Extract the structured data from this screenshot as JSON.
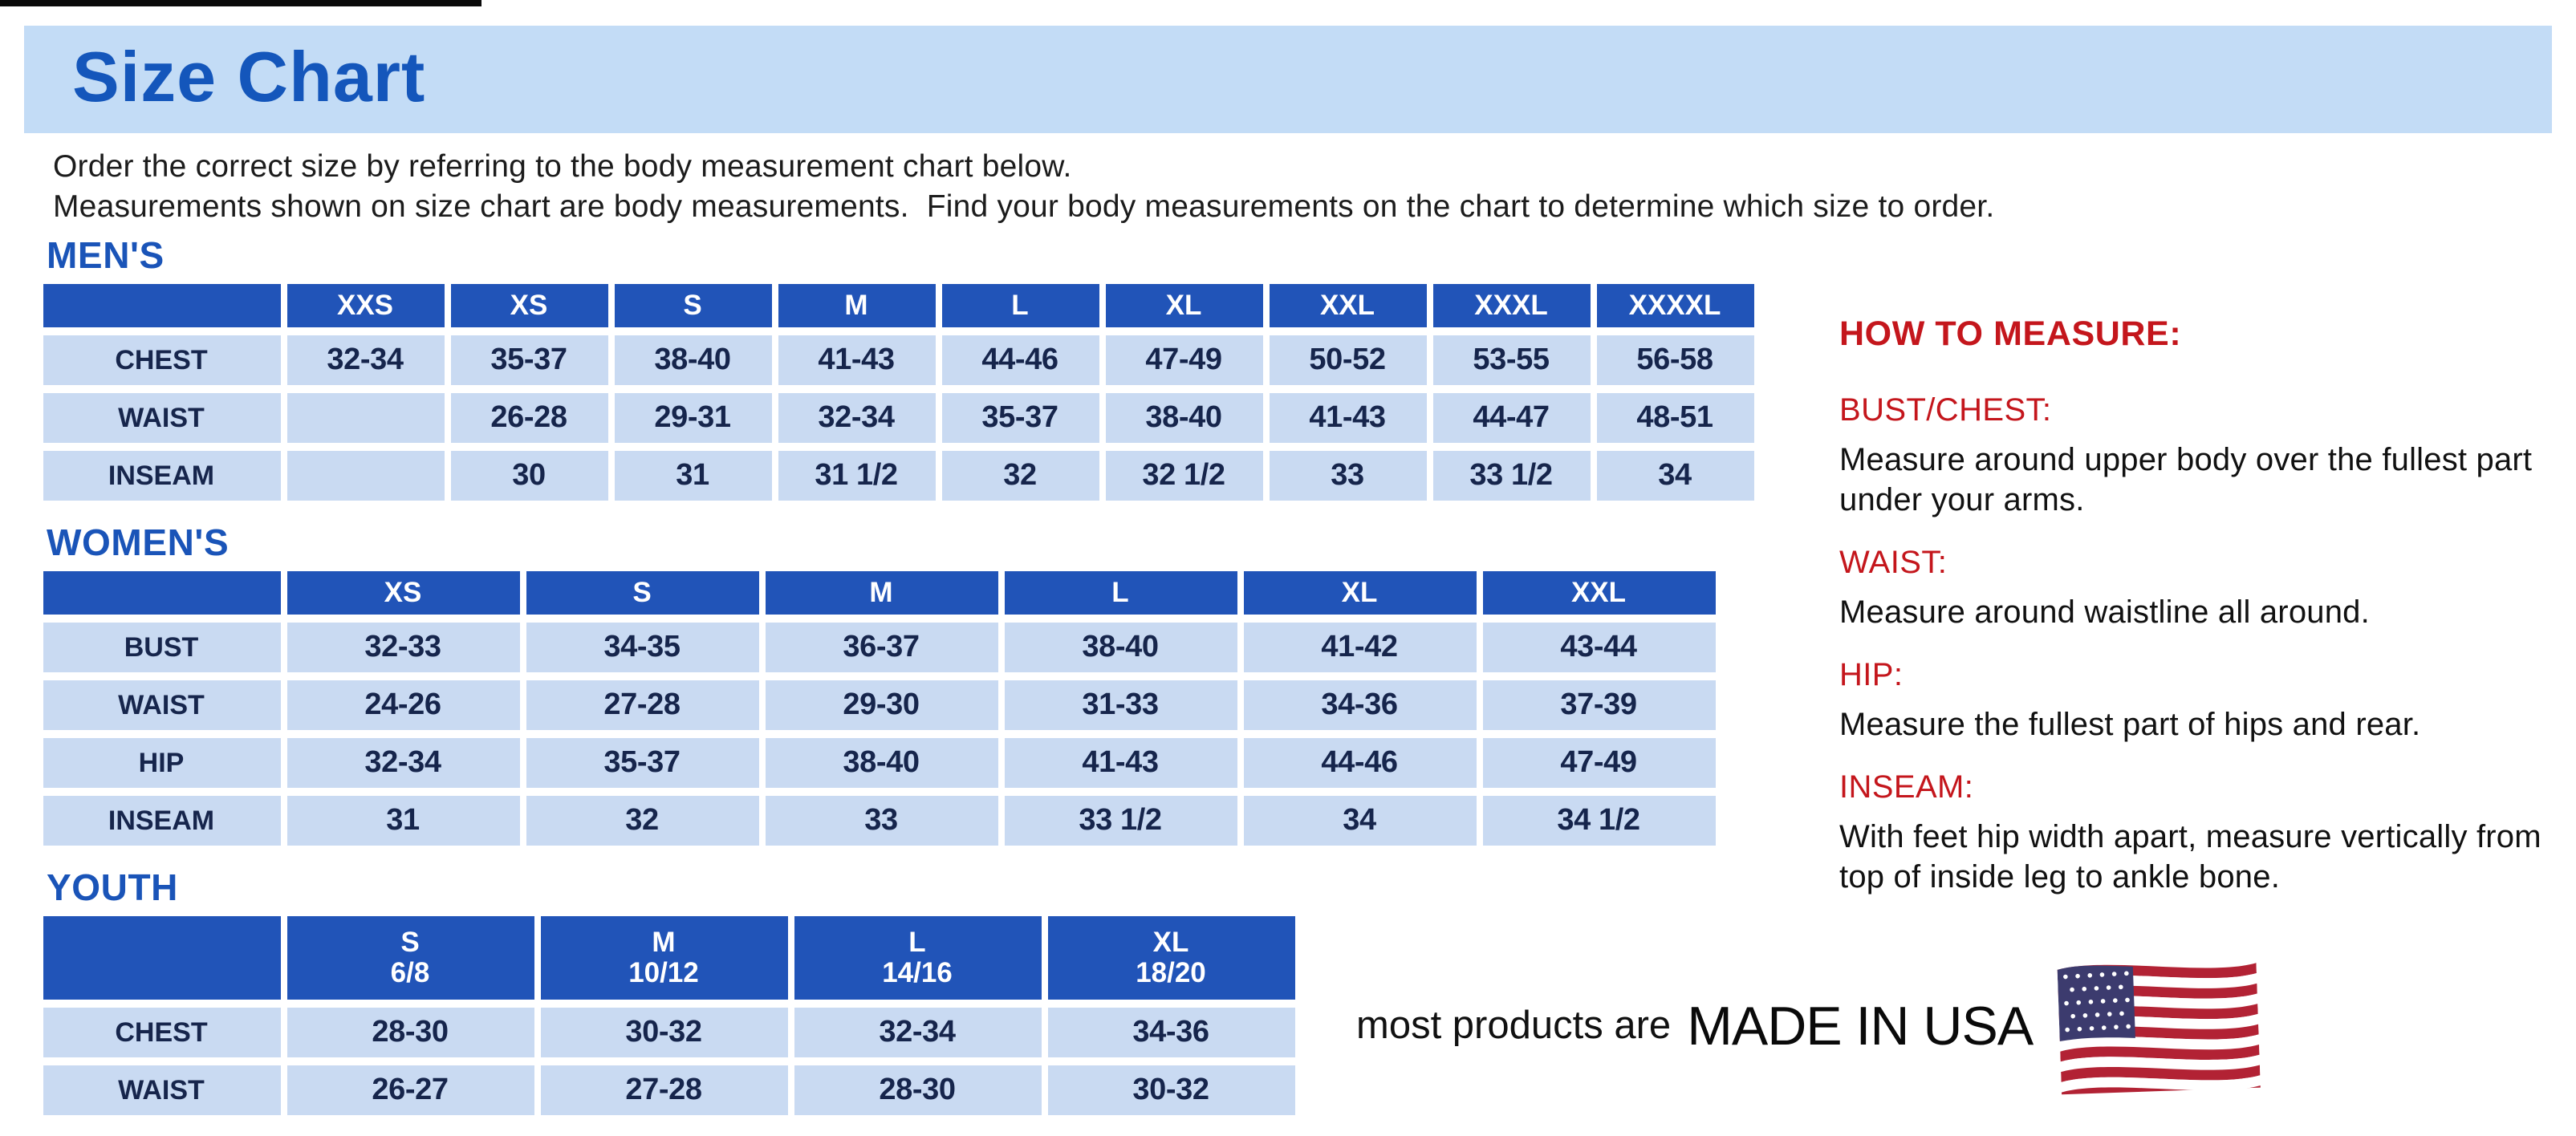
{
  "header": {
    "title": "Size Chart",
    "intro_line1": "Order the correct size by referring to the body measurement chart below.",
    "intro_line2": "Measurements shown on size chart are body measurements.  Find your body measurements on the chart to determine which size to order."
  },
  "tables": [
    {
      "section": "MEN'S",
      "columns": [
        [
          "XXS"
        ],
        [
          "XS"
        ],
        [
          "S"
        ],
        [
          "M"
        ],
        [
          "L"
        ],
        [
          "XL"
        ],
        [
          "XXL"
        ],
        [
          "XXXL"
        ],
        [
          "XXXXL"
        ]
      ],
      "rows": [
        {
          "label": "CHEST",
          "values": [
            "32-34",
            "35-37",
            "38-40",
            "41-43",
            "44-46",
            "47-49",
            "50-52",
            "53-55",
            "56-58"
          ]
        },
        {
          "label": "WAIST",
          "values": [
            "",
            "26-28",
            "29-31",
            "32-34",
            "35-37",
            "38-40",
            "41-43",
            "44-47",
            "48-51"
          ]
        },
        {
          "label": "INSEAM",
          "values": [
            "",
            "30",
            "31",
            "31 1/2",
            "32",
            "32 1/2",
            "33",
            "33 1/2",
            "34"
          ]
        }
      ]
    },
    {
      "section": "WOMEN'S",
      "columns": [
        [
          "XS"
        ],
        [
          "S"
        ],
        [
          "M"
        ],
        [
          "L"
        ],
        [
          "XL"
        ],
        [
          "XXL"
        ]
      ],
      "rows": [
        {
          "label": "BUST",
          "values": [
            "32-33",
            "34-35",
            "36-37",
            "38-40",
            "41-42",
            "43-44"
          ]
        },
        {
          "label": "WAIST",
          "values": [
            "24-26",
            "27-28",
            "29-30",
            "31-33",
            "34-36",
            "37-39"
          ]
        },
        {
          "label": "HIP",
          "values": [
            "32-34",
            "35-37",
            "38-40",
            "41-43",
            "44-46",
            "47-49"
          ]
        },
        {
          "label": "INSEAM",
          "values": [
            "31",
            "32",
            "33",
            "33 1/2",
            "34",
            "34 1/2"
          ]
        }
      ]
    },
    {
      "section": "YOUTH",
      "columns": [
        [
          "S",
          "6/8"
        ],
        [
          "M",
          "10/12"
        ],
        [
          "L",
          "14/16"
        ],
        [
          "XL",
          "18/20"
        ]
      ],
      "rows": [
        {
          "label": "CHEST",
          "values": [
            "28-30",
            "30-32",
            "32-34",
            "34-36"
          ]
        },
        {
          "label": "WAIST",
          "values": [
            "26-27",
            "27-28",
            "28-30",
            "30-32"
          ]
        }
      ]
    }
  ],
  "how_to_measure": {
    "title": "HOW TO MEASURE:",
    "items": [
      {
        "label": "BUST/CHEST:",
        "text": "Measure around upper body over the fullest part under your arms."
      },
      {
        "label": "WAIST:",
        "text": "Measure around waistline all around."
      },
      {
        "label": "HIP:",
        "text": "Measure the fullest part of hips and rear."
      },
      {
        "label": "INSEAM:",
        "text": "With feet hip width apart, measure vertically from top of inside leg to ankle bone."
      }
    ]
  },
  "footer": {
    "prefix_text": "most products are",
    "made_in_text": "MADE IN USA",
    "flag_icon": "us-flag-icon"
  },
  "colors": {
    "banner_bg": "#c3dcf6",
    "title_blue": "#1456bb",
    "section_blue": "#1a54b8",
    "header_cell_blue": "#2154b8",
    "cell_bg": "#c9daf2",
    "cell_text": "#16254c",
    "red_heading": "#c4161c",
    "body_text": "#1c1c1c"
  }
}
